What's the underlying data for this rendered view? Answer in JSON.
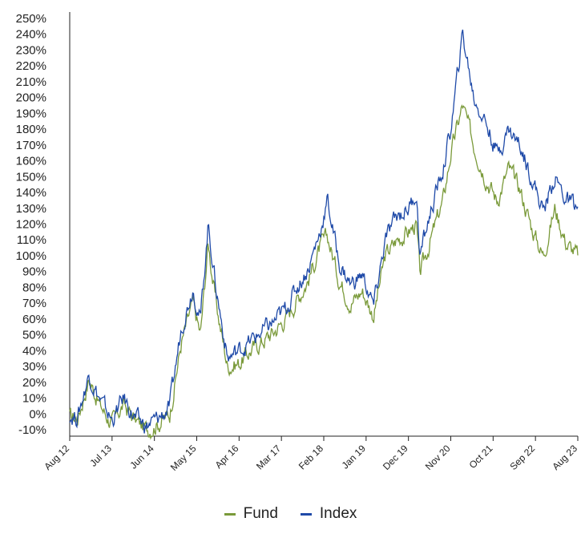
{
  "chart_data": {
    "type": "line",
    "title": "",
    "xlabel": "",
    "ylabel": "",
    "ylim": [
      -10,
      250
    ],
    "grid": false,
    "legend": "bottom-center",
    "y_tick_labels": [
      "-10%",
      "0%",
      "10%",
      "20%",
      "30%",
      "40%",
      "50%",
      "60%",
      "70%",
      "80%",
      "90%",
      "100%",
      "110%",
      "120%",
      "130%",
      "140%",
      "150%",
      "160%",
      "170%",
      "180%",
      "190%",
      "200%",
      "210%",
      "220%",
      "230%",
      "240%",
      "250%"
    ],
    "x_tick_labels": [
      "Aug 12",
      "Jul 13",
      "Jun 14",
      "May 15",
      "Apr 16",
      "Mar 17",
      "Feb 18",
      "Jan 19",
      "Dec 19",
      "Nov 20",
      "Oct 21",
      "Sep 22",
      "Aug 23"
    ],
    "x": [
      "2012-08",
      "2012-10",
      "2013-01",
      "2013-04",
      "2013-07",
      "2013-10",
      "2014-01",
      "2014-04",
      "2014-07",
      "2014-10",
      "2015-01",
      "2015-04",
      "2015-06",
      "2015-08",
      "2015-10",
      "2016-01",
      "2016-04",
      "2016-07",
      "2016-10",
      "2017-01",
      "2017-04",
      "2017-07",
      "2017-10",
      "2018-01",
      "2018-03",
      "2018-06",
      "2018-09",
      "2018-12",
      "2019-03",
      "2019-06",
      "2019-09",
      "2019-12",
      "2020-02",
      "2020-03",
      "2020-06",
      "2020-09",
      "2020-11",
      "2021-02",
      "2021-05",
      "2021-08",
      "2021-11",
      "2022-02",
      "2022-05",
      "2022-08",
      "2022-11",
      "2023-02",
      "2023-05",
      "2023-08"
    ],
    "series": [
      {
        "name": "Fund",
        "color": "#7a9a3a",
        "values": [
          -2,
          -3,
          22,
          5,
          -6,
          6,
          -4,
          -10,
          -6,
          0,
          45,
          70,
          50,
          108,
          70,
          30,
          32,
          40,
          46,
          52,
          60,
          72,
          85,
          105,
          112,
          85,
          70,
          78,
          62,
          100,
          110,
          115,
          120,
          88,
          112,
          135,
          165,
          195,
          170,
          150,
          135,
          155,
          142,
          118,
          100,
          130,
          108,
          100
        ]
      },
      {
        "name": "Index",
        "color": "#1f4aa8",
        "values": [
          -1,
          -2,
          25,
          8,
          -4,
          10,
          -3,
          -8,
          -3,
          4,
          55,
          80,
          60,
          120,
          80,
          35,
          40,
          46,
          52,
          58,
          66,
          80,
          92,
          115,
          135,
          95,
          82,
          88,
          68,
          110,
          125,
          130,
          140,
          100,
          130,
          155,
          180,
          240,
          200,
          185,
          165,
          180,
          170,
          150,
          128,
          150,
          135,
          130
        ]
      }
    ]
  }
}
